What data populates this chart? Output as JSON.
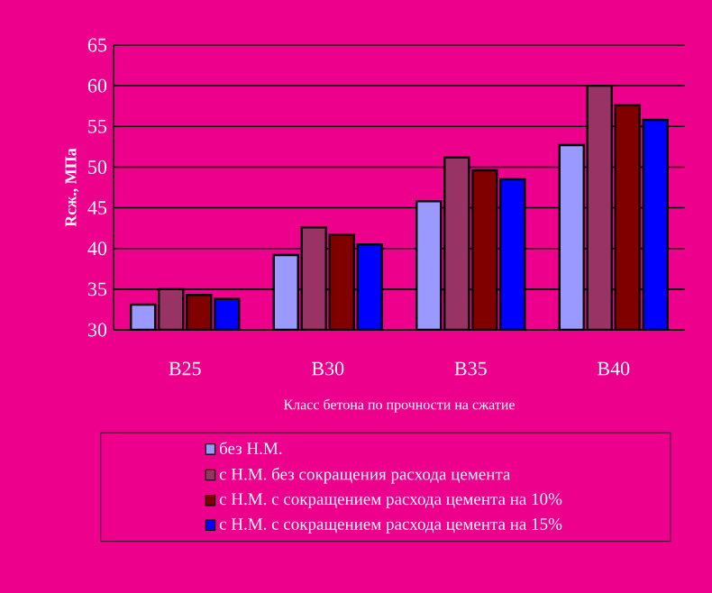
{
  "chart_data": {
    "type": "bar",
    "xlabel": "Класс бетона по прочности на сжатие",
    "ylabel": "Rсж., МПа",
    "categories": [
      "B25",
      "B30",
      "B35",
      "B40"
    ],
    "series": [
      {
        "name": "без Н.М.",
        "color": "#9999ff",
        "values": [
          33.1,
          39.2,
          45.8,
          52.7
        ]
      },
      {
        "name": "с Н.М. без сокращения расхода цемента",
        "color": "#993366",
        "values": [
          35.0,
          42.6,
          51.2,
          60.0
        ]
      },
      {
        "name": "с Н.М. с сокращением расхода цемента на 10%",
        "color": "#800000",
        "values": [
          34.3,
          41.7,
          49.6,
          57.6
        ]
      },
      {
        "name": "с Н.М. с сокращением расхода цемента на 15%",
        "color": "#0000ff",
        "values": [
          33.8,
          40.5,
          48.5,
          55.8
        ]
      }
    ],
    "ylim": [
      30,
      65
    ],
    "yticks": [
      30,
      35,
      40,
      45,
      50,
      55,
      60,
      65
    ],
    "grid": "y",
    "legend": "bottom"
  }
}
